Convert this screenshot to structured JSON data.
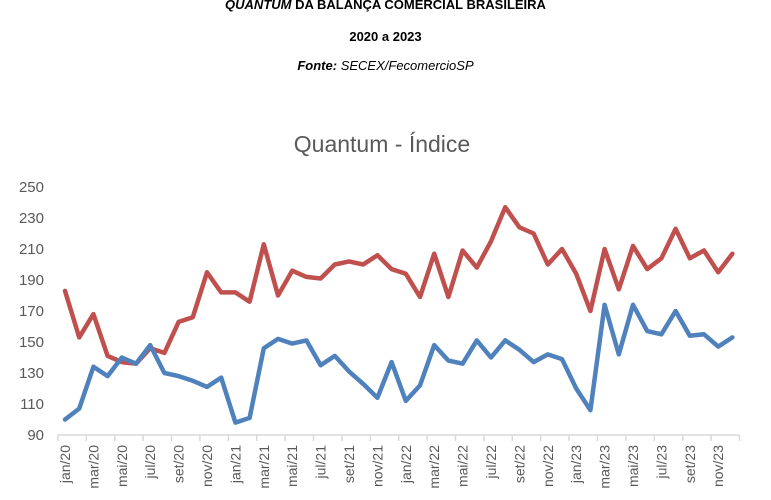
{
  "header": {
    "title_italic": "QUANTUM",
    "title_rest": " DA BALANÇA COMERCIAL BRASILEIRA",
    "period": "2020 a 2023",
    "source_label": "Fonte:",
    "source_value": " SECEX/FecomercioSP"
  },
  "chart_data": {
    "type": "line",
    "title": "Quantum - Índice",
    "xlabel": "",
    "ylabel": "",
    "ylim": [
      90,
      250
    ],
    "yticks": [
      90,
      110,
      130,
      150,
      170,
      190,
      210,
      230,
      250
    ],
    "grid": false,
    "legend": "none",
    "x": [
      "jan/20",
      "fev/20",
      "mar/20",
      "abr/20",
      "mai/20",
      "jun/20",
      "jul/20",
      "ago/20",
      "set/20",
      "out/20",
      "nov/20",
      "dez/20",
      "jan/21",
      "fev/21",
      "mar/21",
      "abr/21",
      "mai/21",
      "jun/21",
      "jul/21",
      "ago/21",
      "set/21",
      "out/21",
      "nov/21",
      "dez/21",
      "jan/22",
      "fev/22",
      "mar/22",
      "abr/22",
      "mai/22",
      "jun/22",
      "jul/22",
      "ago/22",
      "set/22",
      "out/22",
      "nov/22",
      "dez/22",
      "jan/23",
      "fev/23",
      "mar/23",
      "abr/23",
      "mai/23",
      "jun/23",
      "jul/23",
      "ago/23",
      "set/23",
      "out/23",
      "nov/23",
      "dez/23"
    ],
    "xtick_labels": [
      "jan/20",
      "mar/20",
      "mai/20",
      "jul/20",
      "set/20",
      "nov/20",
      "jan/21",
      "mar/21",
      "mai/21",
      "jul/21",
      "set/21",
      "nov/21",
      "jan/22",
      "mar/22",
      "mai/22",
      "jul/22",
      "set/22",
      "nov/22",
      "jan/23",
      "mar/23",
      "mai/23",
      "jul/23",
      "set/23",
      "nov/23"
    ],
    "series": [
      {
        "color": "#c0504d",
        "values": [
          183,
          153,
          168,
          141,
          137,
          136,
          146,
          143,
          163,
          166,
          195,
          182,
          182,
          176,
          213,
          180,
          196,
          192,
          191,
          200,
          202,
          200,
          206,
          197,
          194,
          179,
          207,
          179,
          209,
          198,
          215,
          237,
          224,
          220,
          200,
          210,
          194,
          170,
          210,
          184,
          212,
          197,
          204,
          223,
          204,
          209,
          195,
          207
        ]
      },
      {
        "color": "#4f81bd",
        "values": [
          100,
          107,
          134,
          128,
          140,
          136,
          148,
          130,
          128,
          125,
          121,
          127,
          98,
          101,
          146,
          152,
          149,
          151,
          135,
          141,
          131,
          123,
          114,
          137,
          112,
          122,
          148,
          138,
          136,
          151,
          140,
          151,
          145,
          137,
          142,
          139,
          120,
          106,
          174,
          142,
          174,
          157,
          155,
          170,
          154,
          155,
          147,
          153
        ]
      }
    ]
  }
}
